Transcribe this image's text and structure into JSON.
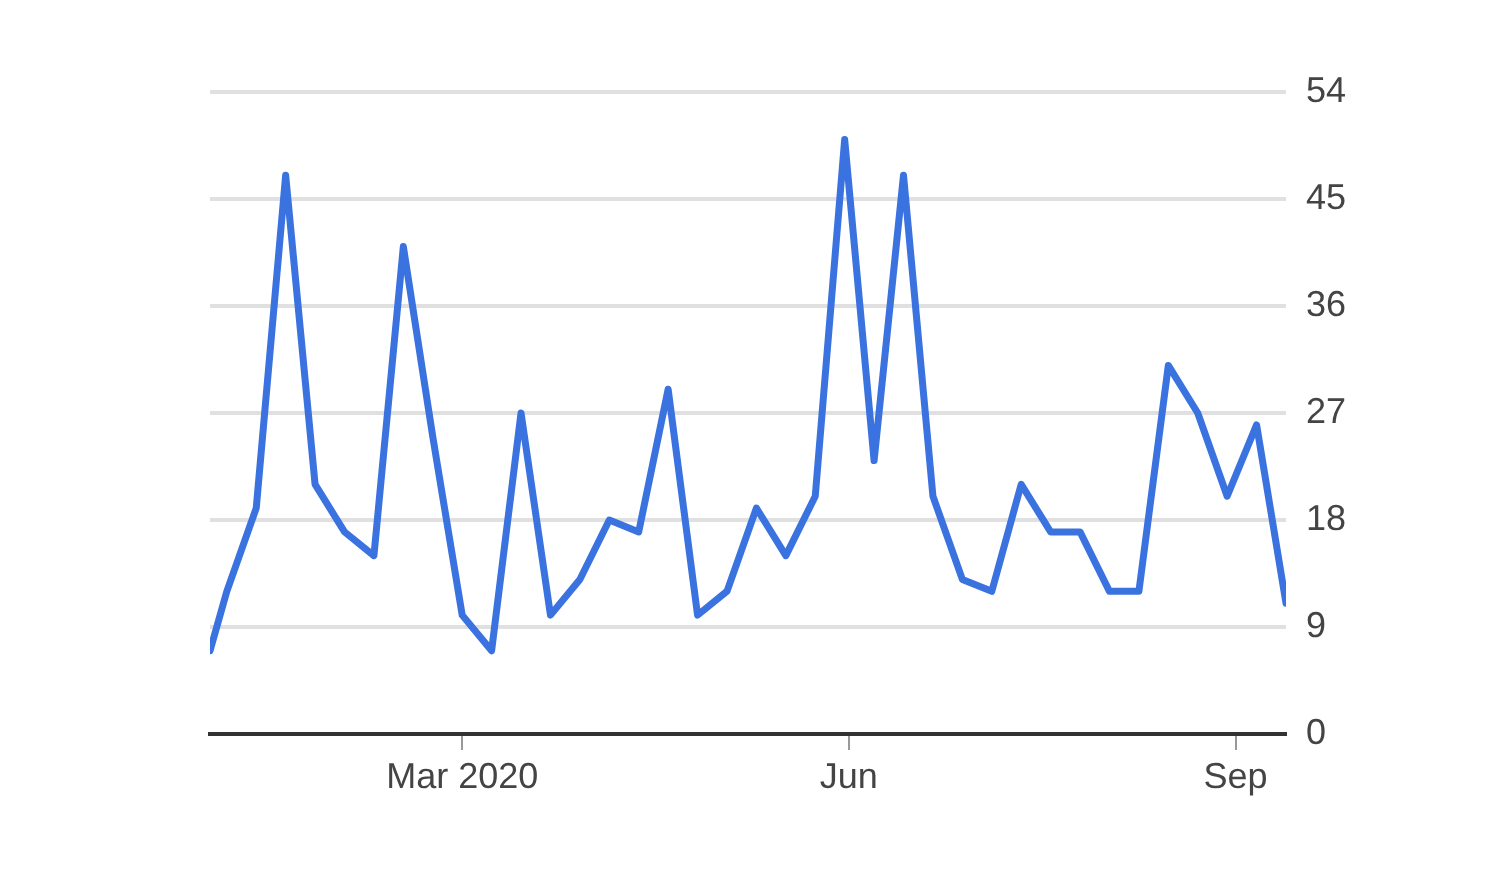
{
  "chart_data": {
    "type": "line",
    "x": [
      "2020-01-01",
      "2020-01-05",
      "2020-01-12",
      "2020-01-19",
      "2020-01-26",
      "2020-02-02",
      "2020-02-09",
      "2020-02-16",
      "2020-02-23",
      "2020-03-01",
      "2020-03-08",
      "2020-03-15",
      "2020-03-22",
      "2020-03-29",
      "2020-04-05",
      "2020-04-12",
      "2020-04-19",
      "2020-04-26",
      "2020-05-03",
      "2020-05-10",
      "2020-05-17",
      "2020-05-24",
      "2020-05-31",
      "2020-06-07",
      "2020-06-14",
      "2020-06-21",
      "2020-06-28",
      "2020-07-05",
      "2020-07-12",
      "2020-07-19",
      "2020-07-26",
      "2020-08-02",
      "2020-08-09",
      "2020-08-16",
      "2020-08-23",
      "2020-08-30",
      "2020-09-06",
      "2020-09-13"
    ],
    "series": [
      {
        "color": "#3a73e0",
        "values": [
          7,
          12,
          19,
          47,
          21,
          17,
          15,
          41,
          25,
          10,
          7,
          27,
          10,
          13,
          18,
          17,
          29,
          10,
          12,
          19,
          15,
          20,
          50,
          23,
          47,
          20,
          13,
          12,
          21,
          17,
          17,
          12,
          12,
          31,
          27,
          20,
          26,
          11
        ]
      }
    ],
    "xlim": [
      "2020-01-01",
      "2020-09-13"
    ],
    "xticks": [
      {
        "value": "2020-03-01",
        "label": "Mar 2020"
      },
      {
        "value": "2020-06-01",
        "label": "Jun"
      },
      {
        "value": "2020-09-01",
        "label": "Sep"
      }
    ],
    "ylim": [
      0,
      54
    ],
    "yticks": [
      0,
      9,
      18,
      27,
      36,
      45,
      54
    ],
    "grid": "y",
    "marker": "none",
    "line_style": "solid",
    "legend": false
  }
}
